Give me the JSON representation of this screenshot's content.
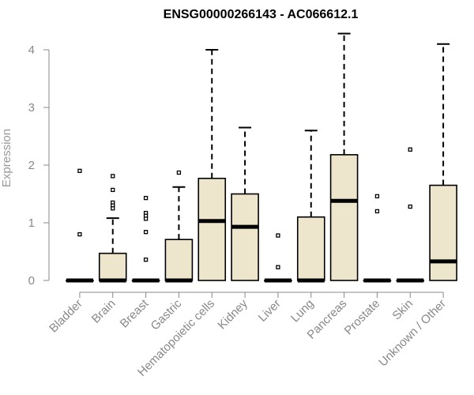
{
  "chart_data": {
    "type": "box",
    "title": "ENSG00000266143 - AC066612.1",
    "ylabel": "Expression",
    "ylim": [
      0,
      4.3
    ],
    "yticks": [
      0,
      1,
      2,
      3,
      4
    ],
    "box_fill": "#ede6cc",
    "categories": [
      "Bladder",
      "Brain",
      "Breast",
      "Gastric",
      "Hematopoietic cells",
      "Kidney",
      "Liver",
      "Lung",
      "Pancreas",
      "Prostate",
      "Skin",
      "Unknown / Other"
    ],
    "boxes": [
      {
        "q1": 0,
        "median": 0,
        "q3": 0,
        "whisker_low": 0,
        "whisker_high": 0,
        "outliers": [
          1.9,
          0.8
        ]
      },
      {
        "q1": 0,
        "median": 0,
        "q3": 0.47,
        "whisker_low": 0,
        "whisker_high": 1.08,
        "outliers": [
          1.81,
          1.57,
          1.35,
          1.3,
          1.25
        ]
      },
      {
        "q1": 0,
        "median": 0,
        "q3": 0,
        "whisker_low": 0,
        "whisker_high": 0,
        "outliers": [
          1.43,
          1.17,
          1.12,
          1.07,
          0.84,
          0.36
        ]
      },
      {
        "q1": 0,
        "median": 0,
        "q3": 0.71,
        "whisker_low": 0,
        "whisker_high": 1.62,
        "outliers": [
          1.87
        ]
      },
      {
        "q1": 0,
        "median": 1.03,
        "q3": 1.77,
        "whisker_low": 0,
        "whisker_high": 4.0,
        "outliers": []
      },
      {
        "q1": 0,
        "median": 0.93,
        "q3": 1.5,
        "whisker_low": 0,
        "whisker_high": 2.65,
        "outliers": []
      },
      {
        "q1": 0,
        "median": 0,
        "q3": 0,
        "whisker_low": 0,
        "whisker_high": 0,
        "outliers": [
          0.78,
          0.23
        ]
      },
      {
        "q1": 0,
        "median": 0,
        "q3": 1.1,
        "whisker_low": 0,
        "whisker_high": 2.6,
        "outliers": []
      },
      {
        "q1": 0,
        "median": 1.38,
        "q3": 2.18,
        "whisker_low": 0,
        "whisker_high": 4.28,
        "outliers": []
      },
      {
        "q1": 0,
        "median": 0,
        "q3": 0,
        "whisker_low": 0,
        "whisker_high": 0,
        "outliers": [
          1.46,
          1.2
        ]
      },
      {
        "q1": 0,
        "median": 0,
        "q3": 0,
        "whisker_low": 0,
        "whisker_high": 0,
        "outliers": [
          2.27,
          1.28
        ]
      },
      {
        "q1": 0,
        "median": 0.33,
        "q3": 1.65,
        "whisker_low": 0,
        "whisker_high": 4.1,
        "outliers": []
      }
    ]
  }
}
